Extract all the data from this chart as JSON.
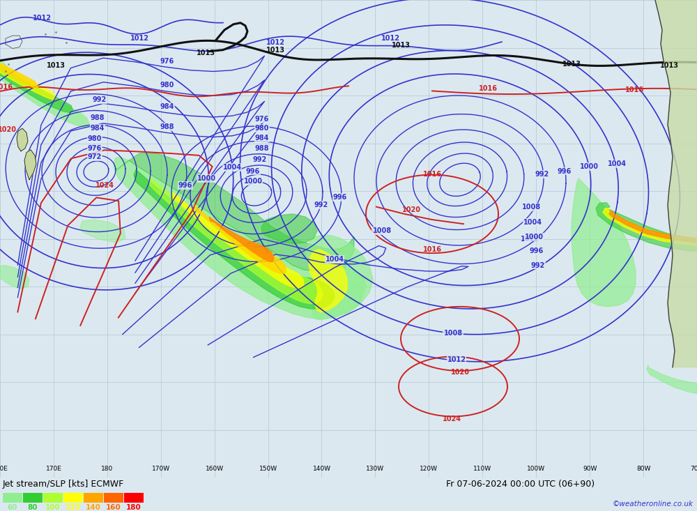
{
  "title_bottom": "Jet stream/SLP [kts] ECMWF",
  "datetime_str": "Fr 07-06-2024 00:00 UTC (06+90)",
  "copyright": "©weatheronline.co.uk",
  "colorbar_labels": [
    "60",
    "80",
    "100",
    "120",
    "140",
    "160",
    "180"
  ],
  "colorbar_colors": [
    "#90ee90",
    "#32cd32",
    "#adff2f",
    "#ffff00",
    "#ffa500",
    "#ff6600",
    "#ff0000"
  ],
  "bg_color": "#dce8f0",
  "grid_color": "#b8ccd8",
  "c_blue": "#3333cc",
  "c_black": "#111111",
  "c_red": "#cc2222",
  "figsize": [
    10.0,
    7.33
  ],
  "dpi": 100
}
